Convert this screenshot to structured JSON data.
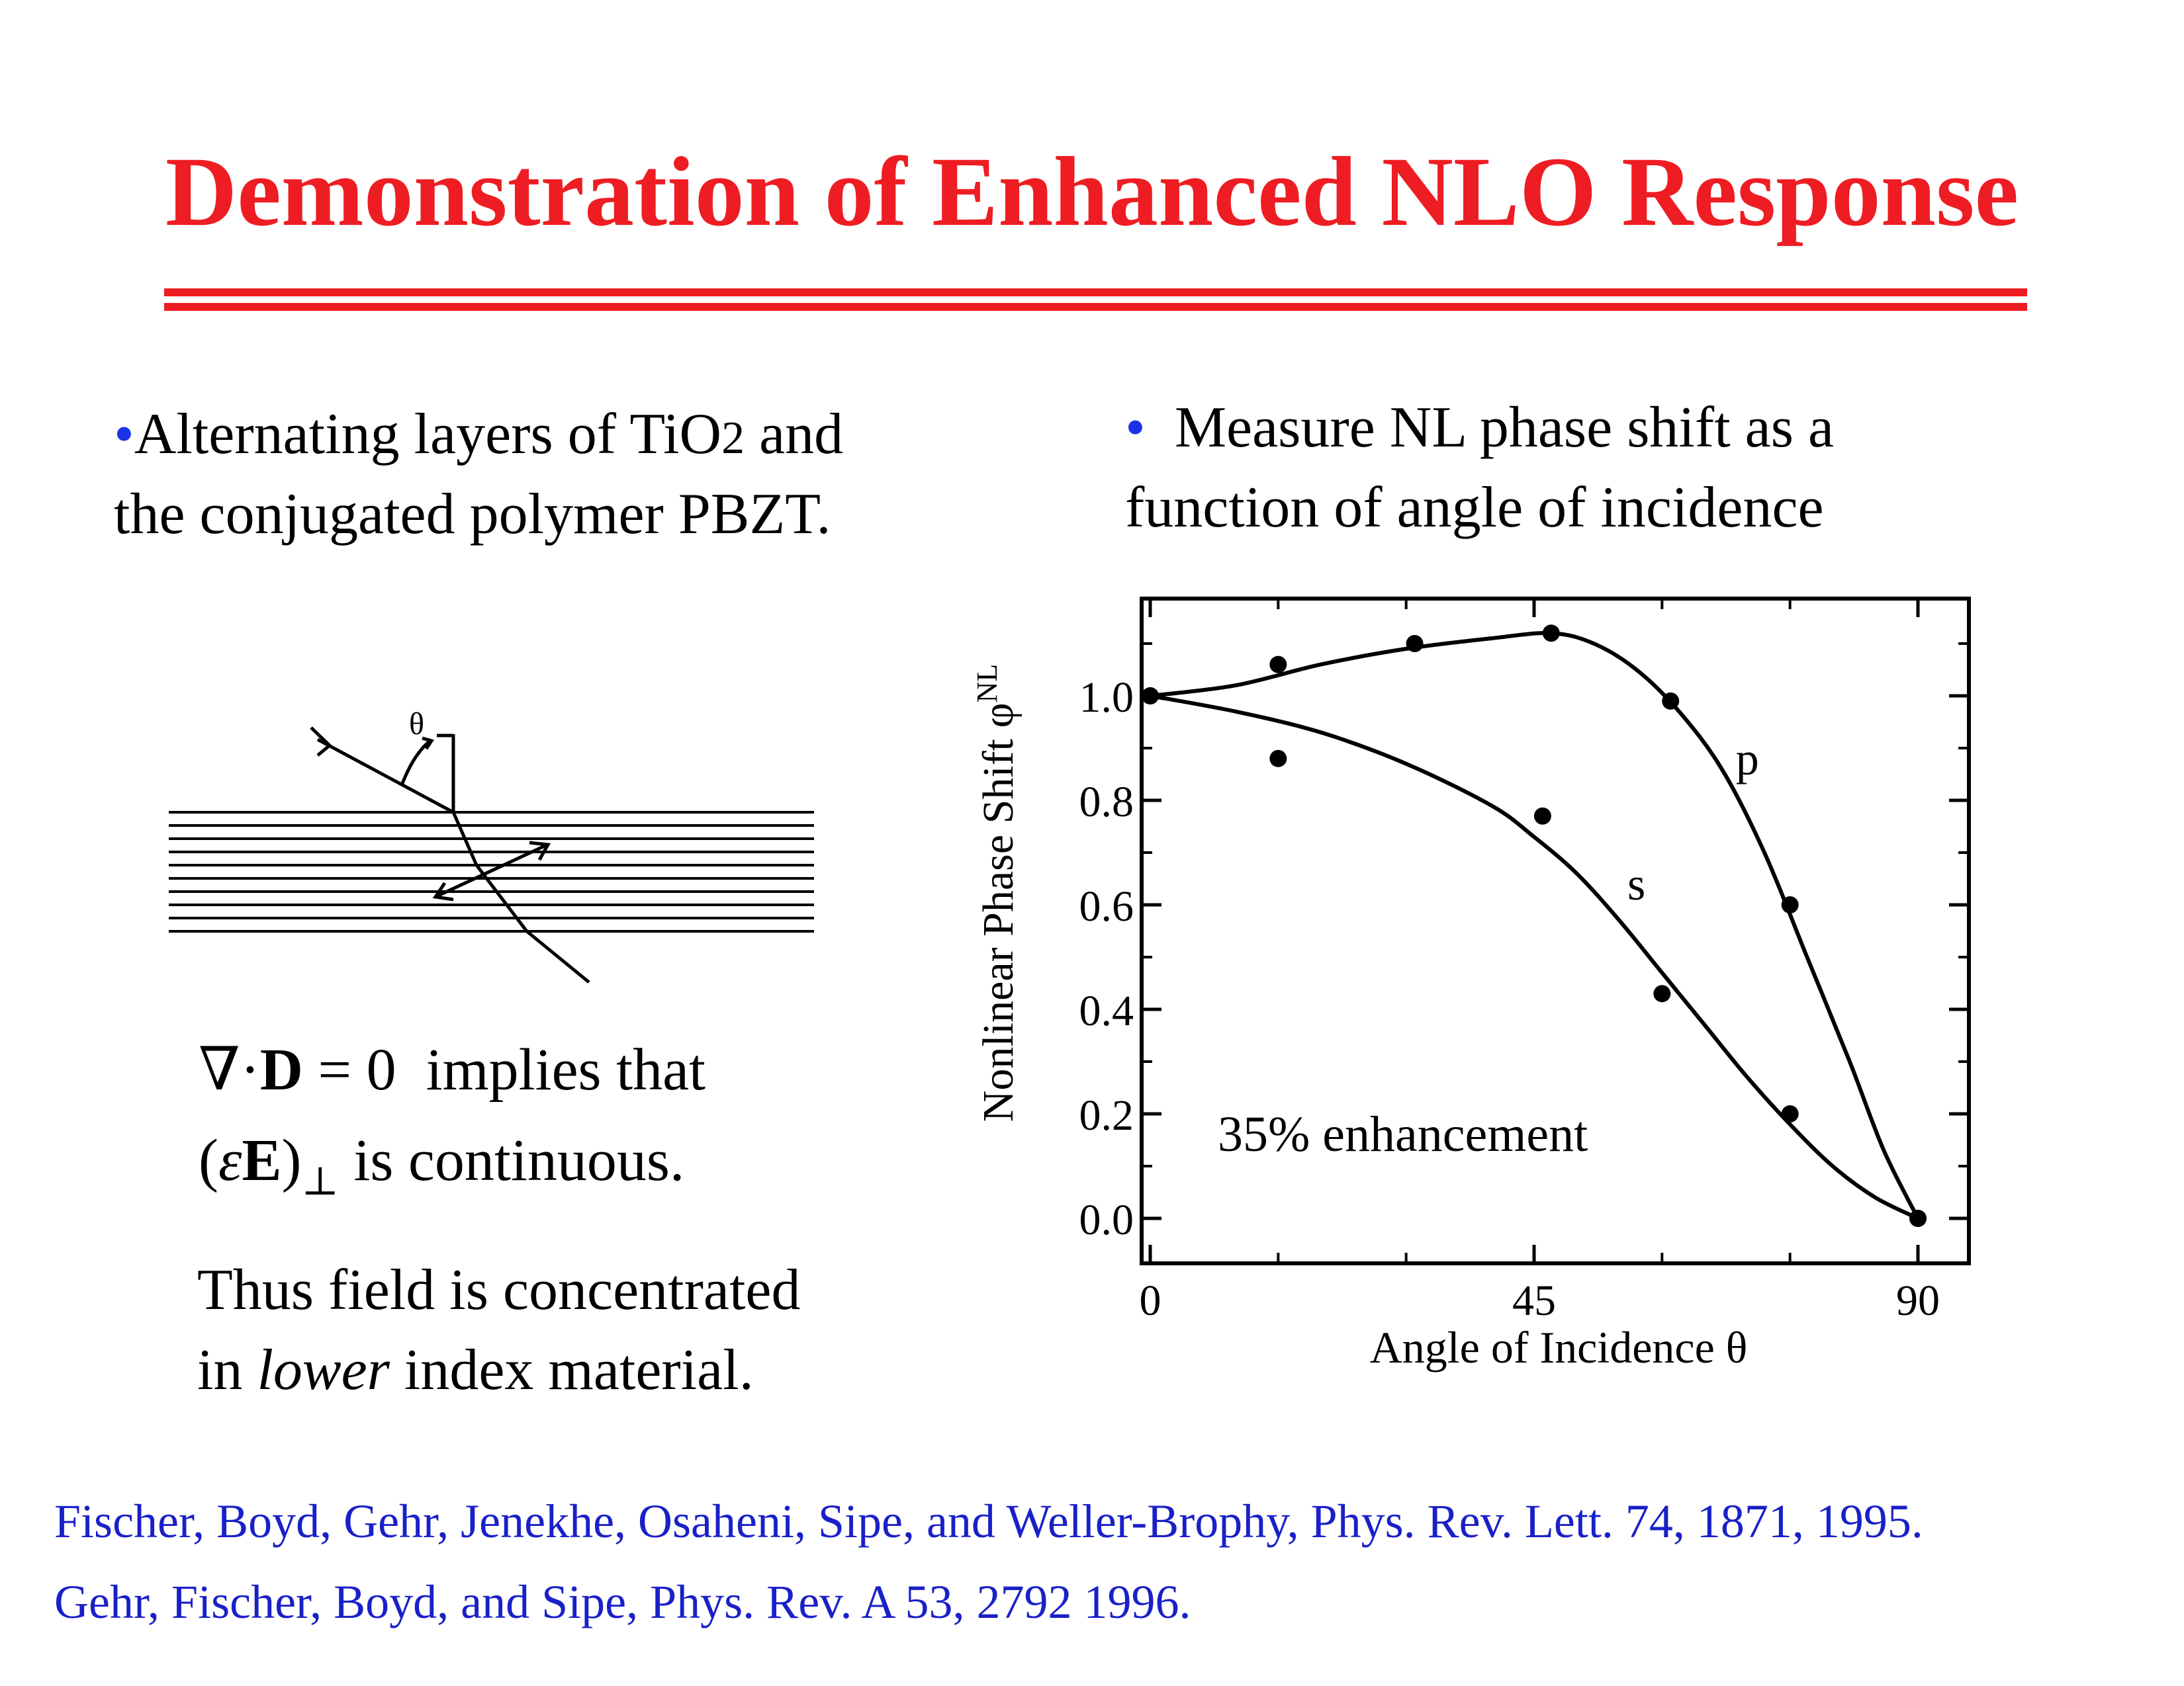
{
  "slide": {
    "title": "Demonstration of Enhanced NLO Response",
    "bullets": [
      {
        "bullet_char": "•",
        "line1_before": "Alternating layers of TiO",
        "line1_sub": "2",
        "line1_after": " and",
        "line2": "the conjugated polymer PBZT."
      },
      {
        "bullet_char": "•",
        "line1": "Measure NL phase shift as a",
        "line2": "function of angle of incidence"
      }
    ],
    "equation": {
      "nabla": "∇",
      "dot": "·",
      "D": "D",
      "eq": " = 0",
      "implies": "implies that",
      "paren_open": "(",
      "epsilon": "ε",
      "E": "E",
      "paren_close": ")",
      "perp": "⊥",
      "continuous": " is continuous."
    },
    "conclusion": {
      "line1": "Thus field is concentrated",
      "line2_before": "in ",
      "line2_italic": "lower",
      "line2_after": " index material."
    },
    "references": [
      "Fischer, Boyd, Gehr, Jenekhe, Osaheni, Sipe, and Weller-Brophy,  Phys. Rev. Lett. 74, 1871, 1995.",
      "Gehr, Fischer, Boyd, and Sipe, Phys. Rev. A 53, 2792 1996."
    ],
    "diagram": {
      "theta_label": "θ",
      "layer_count": 10
    },
    "colors": {
      "title": "#ee1d23",
      "bullet": "#1a33e6",
      "reference": "#1a20c8"
    }
  },
  "chart_data": {
    "type": "scatter",
    "xlabel": "Angle of Incidence θ",
    "ylabel": "Nonlinear Phase Shift φ",
    "ylabel_sup": "NL",
    "xlim": [
      -2,
      98
    ],
    "ylim": [
      -0.1,
      1.2
    ],
    "x_ticks": [
      0,
      45,
      90
    ],
    "y_ticks": [
      0.0,
      0.2,
      0.4,
      0.6,
      0.8,
      1.0
    ],
    "y_tick_labels": [
      "0.0",
      "0.2",
      "0.4",
      "0.6",
      "0.8",
      "1.0"
    ],
    "annotation": "35% enhancement",
    "series": [
      {
        "name": "p",
        "points": [
          [
            0,
            1.0
          ],
          [
            15,
            1.06
          ],
          [
            31,
            1.1
          ],
          [
            47,
            1.12
          ],
          [
            61,
            0.99
          ],
          [
            75,
            0.6
          ],
          [
            90,
            0.0
          ]
        ],
        "curve": [
          [
            0,
            1.0
          ],
          [
            10,
            1.02
          ],
          [
            20,
            1.06
          ],
          [
            30,
            1.09
          ],
          [
            40,
            1.11
          ],
          [
            47,
            1.12
          ],
          [
            52,
            1.1
          ],
          [
            57,
            1.05
          ],
          [
            62,
            0.97
          ],
          [
            67,
            0.86
          ],
          [
            72,
            0.7
          ],
          [
            77,
            0.5
          ],
          [
            82,
            0.3
          ],
          [
            86,
            0.13
          ],
          [
            90,
            0.0
          ]
        ]
      },
      {
        "name": "s",
        "points": [
          [
            0,
            1.0
          ],
          [
            15,
            0.88
          ],
          [
            46,
            0.77
          ],
          [
            60,
            0.43
          ],
          [
            75,
            0.2
          ],
          [
            90,
            0.0
          ]
        ],
        "curve": [
          [
            0,
            1.0
          ],
          [
            10,
            0.97
          ],
          [
            20,
            0.93
          ],
          [
            30,
            0.87
          ],
          [
            40,
            0.79
          ],
          [
            45,
            0.73
          ],
          [
            50,
            0.66
          ],
          [
            55,
            0.57
          ],
          [
            60,
            0.47
          ],
          [
            65,
            0.37
          ],
          [
            70,
            0.27
          ],
          [
            75,
            0.18
          ],
          [
            80,
            0.1
          ],
          [
            85,
            0.04
          ],
          [
            90,
            0.0
          ]
        ]
      }
    ],
    "series_label_positions": [
      {
        "name": "p",
        "x": 70,
        "y": 0.85
      },
      {
        "name": "s",
        "x": 57,
        "y": 0.61
      }
    ]
  }
}
